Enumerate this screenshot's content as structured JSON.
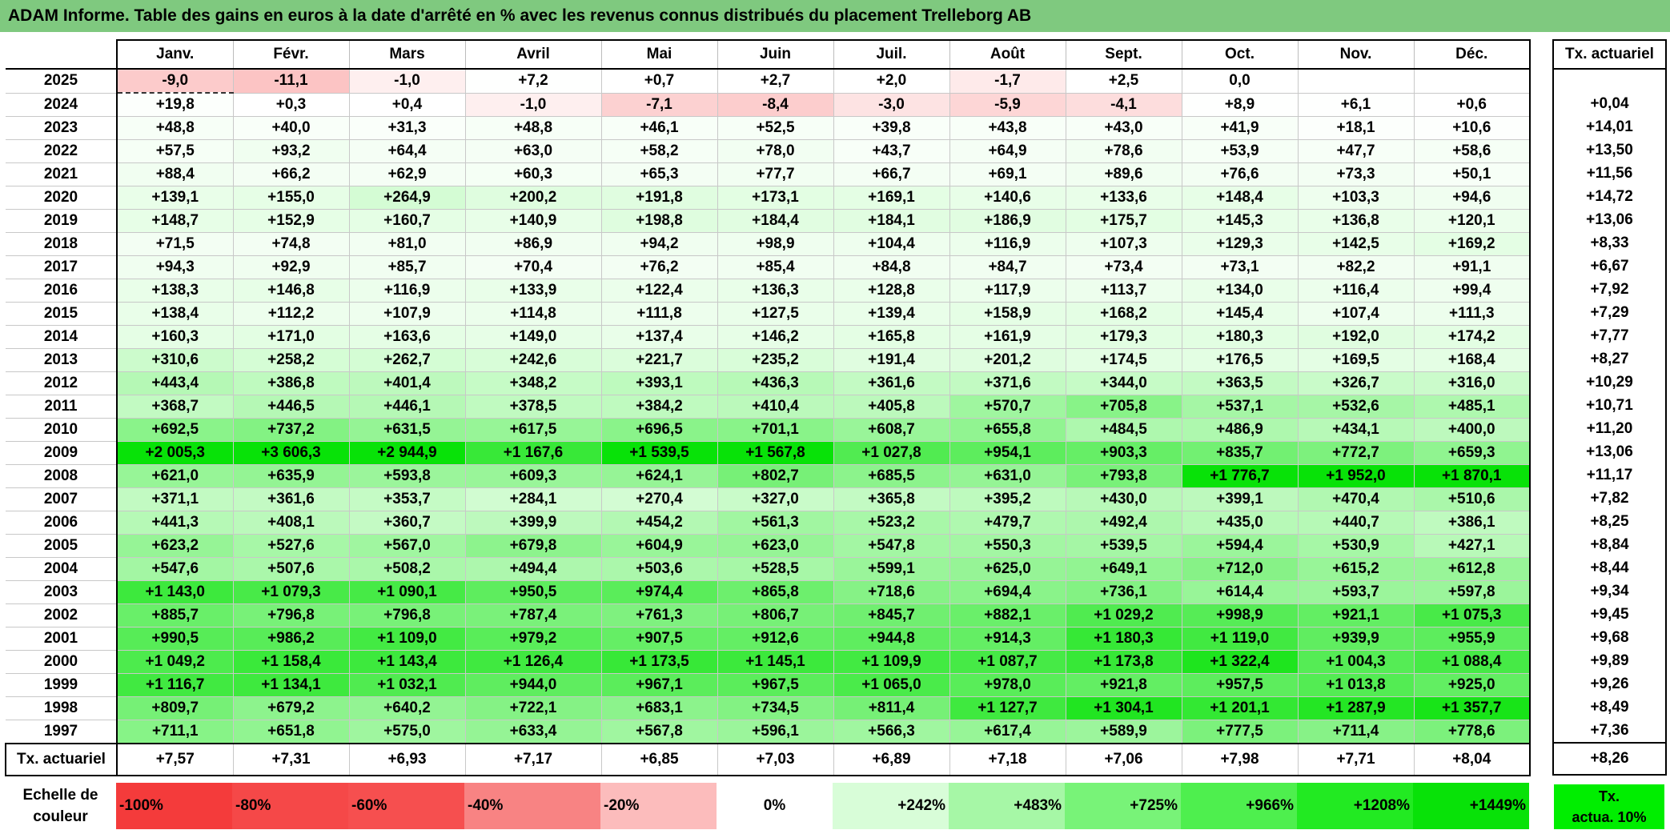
{
  "title": "ADAM Informe. Table des gains en euros à la date d'arrêté en % avec les revenus connus distribués du placement Trelleborg AB",
  "months": [
    "Janv.",
    "Févr.",
    "Mars",
    "Avril",
    "Mai",
    "Juin",
    "Juil.",
    "Août",
    "Sept.",
    "Oct.",
    "Nov.",
    "Déc."
  ],
  "side_header": "Tx. actuariel",
  "chart_data": {
    "type": "table",
    "title": "ADAM Informe. Table des gains en euros à la date d'arrêté en % avec les revenus connus distribués du placement Trelleborg AB",
    "columns": [
      "Janv.",
      "Févr.",
      "Mars",
      "Avril",
      "Mai",
      "Juin",
      "Juil.",
      "Août",
      "Sept.",
      "Oct.",
      "Nov.",
      "Déc.",
      "Tx. actuariel"
    ],
    "rows": [
      {
        "year": "2025",
        "values": [
          "-9,0",
          "-11,1",
          "-1,0",
          "+7,2",
          "+0,7",
          "+2,7",
          "+2,0",
          "-1,7",
          "+2,5",
          "0,0",
          "",
          ""
        ],
        "rate": ""
      },
      {
        "year": "2024",
        "values": [
          "+19,8",
          "+0,3",
          "+0,4",
          "-1,0",
          "-7,1",
          "-8,4",
          "-3,0",
          "-5,9",
          "-4,1",
          "+8,9",
          "+6,1",
          "+0,6"
        ],
        "rate": "+0,04"
      },
      {
        "year": "2023",
        "values": [
          "+48,8",
          "+40,0",
          "+31,3",
          "+48,8",
          "+46,1",
          "+52,5",
          "+39,8",
          "+43,8",
          "+43,0",
          "+41,9",
          "+18,1",
          "+10,6"
        ],
        "rate": "+14,01"
      },
      {
        "year": "2022",
        "values": [
          "+57,5",
          "+93,2",
          "+64,4",
          "+63,0",
          "+58,2",
          "+78,0",
          "+43,7",
          "+64,9",
          "+78,6",
          "+53,9",
          "+47,7",
          "+58,6"
        ],
        "rate": "+13,50"
      },
      {
        "year": "2021",
        "values": [
          "+88,4",
          "+66,2",
          "+62,9",
          "+60,3",
          "+65,3",
          "+77,7",
          "+66,7",
          "+69,1",
          "+89,6",
          "+76,6",
          "+73,3",
          "+50,1"
        ],
        "rate": "+11,56"
      },
      {
        "year": "2020",
        "values": [
          "+139,1",
          "+155,0",
          "+264,9",
          "+200,2",
          "+191,8",
          "+173,1",
          "+169,1",
          "+140,6",
          "+133,6",
          "+148,4",
          "+103,3",
          "+94,6"
        ],
        "rate": "+14,72"
      },
      {
        "year": "2019",
        "values": [
          "+148,7",
          "+152,9",
          "+160,7",
          "+140,9",
          "+198,8",
          "+184,4",
          "+184,1",
          "+186,9",
          "+175,7",
          "+145,3",
          "+136,8",
          "+120,1"
        ],
        "rate": "+13,06"
      },
      {
        "year": "2018",
        "values": [
          "+71,5",
          "+74,8",
          "+81,0",
          "+86,9",
          "+94,2",
          "+98,9",
          "+104,4",
          "+116,9",
          "+107,3",
          "+129,3",
          "+142,5",
          "+169,2"
        ],
        "rate": "+8,33"
      },
      {
        "year": "2017",
        "values": [
          "+94,3",
          "+92,9",
          "+85,7",
          "+70,4",
          "+76,2",
          "+85,4",
          "+84,8",
          "+84,7",
          "+73,4",
          "+73,1",
          "+82,2",
          "+91,1"
        ],
        "rate": "+6,67"
      },
      {
        "year": "2016",
        "values": [
          "+138,3",
          "+146,8",
          "+116,9",
          "+133,9",
          "+122,4",
          "+136,3",
          "+128,8",
          "+117,9",
          "+113,7",
          "+134,0",
          "+116,4",
          "+99,4"
        ],
        "rate": "+7,92"
      },
      {
        "year": "2015",
        "values": [
          "+138,4",
          "+112,2",
          "+107,9",
          "+114,8",
          "+111,8",
          "+127,5",
          "+139,4",
          "+158,9",
          "+168,2",
          "+145,4",
          "+107,4",
          "+111,3"
        ],
        "rate": "+7,29"
      },
      {
        "year": "2014",
        "values": [
          "+160,3",
          "+171,0",
          "+163,6",
          "+149,0",
          "+137,4",
          "+146,2",
          "+165,8",
          "+161,9",
          "+179,3",
          "+180,3",
          "+192,0",
          "+174,2"
        ],
        "rate": "+7,77"
      },
      {
        "year": "2013",
        "values": [
          "+310,6",
          "+258,2",
          "+262,7",
          "+242,6",
          "+221,7",
          "+235,2",
          "+191,4",
          "+201,2",
          "+174,5",
          "+176,5",
          "+169,5",
          "+168,4"
        ],
        "rate": "+8,27"
      },
      {
        "year": "2012",
        "values": [
          "+443,4",
          "+386,8",
          "+401,4",
          "+348,2",
          "+393,1",
          "+436,3",
          "+361,6",
          "+371,6",
          "+344,0",
          "+363,5",
          "+326,7",
          "+316,0"
        ],
        "rate": "+10,29"
      },
      {
        "year": "2011",
        "values": [
          "+368,7",
          "+446,5",
          "+446,1",
          "+378,5",
          "+384,2",
          "+410,4",
          "+405,8",
          "+570,7",
          "+705,8",
          "+537,1",
          "+532,6",
          "+485,1"
        ],
        "rate": "+10,71"
      },
      {
        "year": "2010",
        "values": [
          "+692,5",
          "+737,2",
          "+631,5",
          "+617,5",
          "+696,5",
          "+701,1",
          "+608,7",
          "+655,8",
          "+484,5",
          "+486,9",
          "+434,1",
          "+400,0"
        ],
        "rate": "+11,20"
      },
      {
        "year": "2009",
        "values": [
          "+2 005,3",
          "+3 606,3",
          "+2 944,9",
          "+1 167,6",
          "+1 539,5",
          "+1 567,8",
          "+1 027,8",
          "+954,1",
          "+903,3",
          "+835,7",
          "+772,7",
          "+659,3"
        ],
        "rate": "+13,06"
      },
      {
        "year": "2008",
        "values": [
          "+621,0",
          "+635,9",
          "+593,8",
          "+609,3",
          "+624,1",
          "+802,7",
          "+685,5",
          "+631,0",
          "+793,8",
          "+1 776,7",
          "+1 952,0",
          "+1 870,1"
        ],
        "rate": "+11,17"
      },
      {
        "year": "2007",
        "values": [
          "+371,1",
          "+361,6",
          "+353,7",
          "+284,1",
          "+270,4",
          "+327,0",
          "+365,8",
          "+395,2",
          "+430,0",
          "+399,1",
          "+470,4",
          "+510,6"
        ],
        "rate": "+7,82"
      },
      {
        "year": "2006",
        "values": [
          "+441,3",
          "+408,1",
          "+360,7",
          "+399,9",
          "+454,2",
          "+561,3",
          "+523,2",
          "+479,7",
          "+492,4",
          "+435,0",
          "+440,7",
          "+386,1"
        ],
        "rate": "+8,25"
      },
      {
        "year": "2005",
        "values": [
          "+623,2",
          "+527,6",
          "+567,0",
          "+679,8",
          "+604,9",
          "+623,0",
          "+547,8",
          "+550,3",
          "+539,5",
          "+594,4",
          "+530,9",
          "+427,1"
        ],
        "rate": "+8,84"
      },
      {
        "year": "2004",
        "values": [
          "+547,6",
          "+507,6",
          "+508,2",
          "+494,4",
          "+503,6",
          "+528,5",
          "+599,1",
          "+625,0",
          "+649,1",
          "+712,0",
          "+615,2",
          "+612,8"
        ],
        "rate": "+8,44"
      },
      {
        "year": "2003",
        "values": [
          "+1 143,0",
          "+1 079,3",
          "+1 090,1",
          "+950,5",
          "+974,4",
          "+865,8",
          "+718,6",
          "+694,4",
          "+736,1",
          "+614,4",
          "+593,7",
          "+597,8"
        ],
        "rate": "+9,34"
      },
      {
        "year": "2002",
        "values": [
          "+885,7",
          "+796,8",
          "+796,8",
          "+787,4",
          "+761,3",
          "+806,7",
          "+845,7",
          "+882,1",
          "+1 029,2",
          "+998,9",
          "+921,1",
          "+1 075,3"
        ],
        "rate": "+9,45"
      },
      {
        "year": "2001",
        "values": [
          "+990,5",
          "+986,2",
          "+1 109,0",
          "+979,2",
          "+907,5",
          "+912,6",
          "+944,8",
          "+914,3",
          "+1 180,3",
          "+1 119,0",
          "+939,9",
          "+955,9"
        ],
        "rate": "+9,68"
      },
      {
        "year": "2000",
        "values": [
          "+1 049,2",
          "+1 158,4",
          "+1 143,4",
          "+1 126,4",
          "+1 173,5",
          "+1 145,1",
          "+1 109,9",
          "+1 087,7",
          "+1 173,8",
          "+1 322,4",
          "+1 004,3",
          "+1 088,4"
        ],
        "rate": "+9,89"
      },
      {
        "year": "1999",
        "values": [
          "+1 116,7",
          "+1 134,1",
          "+1 032,1",
          "+944,0",
          "+967,1",
          "+967,5",
          "+1 065,0",
          "+978,0",
          "+921,8",
          "+957,5",
          "+1 013,8",
          "+925,0"
        ],
        "rate": "+9,26"
      },
      {
        "year": "1998",
        "values": [
          "+809,7",
          "+679,2",
          "+640,2",
          "+722,1",
          "+683,1",
          "+734,5",
          "+811,4",
          "+1 127,7",
          "+1 304,1",
          "+1 201,1",
          "+1 287,9",
          "+1 357,7"
        ],
        "rate": "+8,49"
      },
      {
        "year": "1997",
        "values": [
          "+711,1",
          "+651,8",
          "+575,0",
          "+633,4",
          "+567,8",
          "+596,1",
          "+566,3",
          "+617,4",
          "+589,9",
          "+777,5",
          "+711,4",
          "+778,6"
        ],
        "rate": "+7,36"
      }
    ],
    "footer": {
      "label": "Tx. actuariel",
      "values": [
        "+7,57",
        "+7,31",
        "+6,93",
        "+7,17",
        "+6,85",
        "+7,03",
        "+6,89",
        "+7,18",
        "+7,06",
        "+7,98",
        "+7,71",
        "+8,04"
      ],
      "rate": "+8,26"
    },
    "scale": {
      "label": "Echelle de couleur",
      "items": [
        {
          "text": "-100%",
          "color": "#f43b3b"
        },
        {
          "text": "-80%",
          "color": "#f54848"
        },
        {
          "text": "-60%",
          "color": "#f64f4f"
        },
        {
          "text": "-40%",
          "color": "#f88383"
        },
        {
          "text": "-20%",
          "color": "#fcbcbc"
        },
        {
          "text": "0%",
          "color": "#ffffff"
        },
        {
          "text": "+242%",
          "color": "#d8fdd8"
        },
        {
          "text": "+483%",
          "color": "#a6f7a6"
        },
        {
          "text": "+725%",
          "color": "#78f378"
        },
        {
          "text": "+966%",
          "color": "#4eef4e"
        },
        {
          "text": "+1208%",
          "color": "#22ea22"
        },
        {
          "text": "+1449%",
          "color": "#08e208"
        }
      ],
      "side_legend": [
        "Tx.",
        "actua. 10%"
      ],
      "side_legend_color": "#00ee00"
    }
  }
}
